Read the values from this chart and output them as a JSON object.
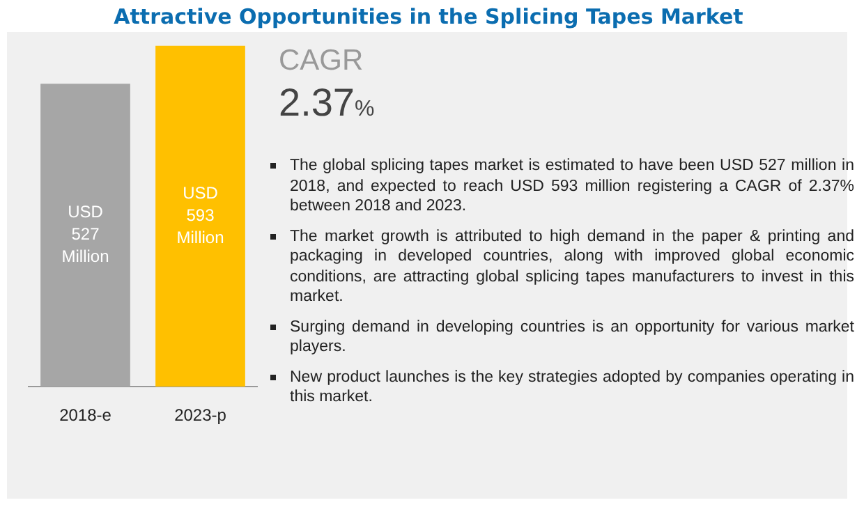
{
  "chart_data": {
    "type": "bar",
    "title": "Attractive Opportunities in the Splicing Tapes Market",
    "categories": [
      "2018-e",
      "2023-p"
    ],
    "values": [
      527,
      593
    ],
    "colors": [
      "#a6a6a6",
      "#ffc000"
    ],
    "value_labels": [
      "USD 527 Million",
      "USD 593 Million"
    ],
    "grid": false,
    "legend": false,
    "annotations": [
      "CAGR",
      "2.37%",
      "The global splicing tapes market is estimated to have been  USD 527 million in 2018, and expected to reach USD 593 million registering a CAGR of 2.37% between 2018 and 2023.",
      "The market growth is attributed to high demand in the paper & printing and packaging in developed countries, along with improved global economic conditions, are attracting global splicing tapes manufacturers to invest in this market.",
      "Surging demand in developing countries is an opportunity for various market players.",
      "New product launches is the key strategies adopted by companies operating in this market."
    ]
  }
}
